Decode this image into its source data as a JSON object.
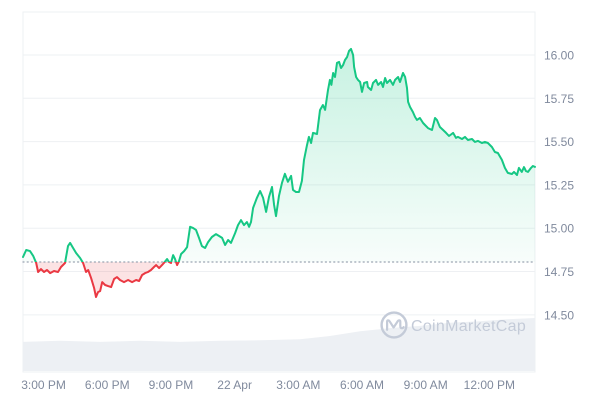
{
  "watermark": {
    "text": "CoinMarketCap"
  },
  "chart_data": {
    "type": "area",
    "title": "",
    "legend": "none",
    "grid": "horizontal",
    "baseline": {
      "value": 14.805,
      "style": "dotted"
    },
    "y_axis": {
      "side": "right",
      "range": [
        14.17,
        16.248
      ],
      "ticks": [
        {
          "value": 16.0,
          "label": "16.00"
        },
        {
          "value": 15.75,
          "label": "15.75"
        },
        {
          "value": 15.5,
          "label": "15.50"
        },
        {
          "value": 15.25,
          "label": "15.25"
        },
        {
          "value": 15.0,
          "label": "15.00"
        },
        {
          "value": 14.75,
          "label": "14.75"
        },
        {
          "value": 14.5,
          "label": "14.50"
        }
      ]
    },
    "x_axis": {
      "range_hours": [
        -0.97,
        23.15
      ],
      "ticks": [
        {
          "hour": 0,
          "label": "3:00 PM"
        },
        {
          "hour": 3,
          "label": "6:00 PM"
        },
        {
          "hour": 6,
          "label": "9:00 PM"
        },
        {
          "hour": 9,
          "label": "22 Apr"
        },
        {
          "hour": 12,
          "label": "3:00 AM"
        },
        {
          "hour": 15,
          "label": "6:00 AM"
        },
        {
          "hour": 18,
          "label": "9:00 AM"
        },
        {
          "hour": 21,
          "label": "12:00 PM"
        }
      ]
    },
    "colors": {
      "up": "#16C784",
      "down": "#EA3943",
      "up_fill_top": "rgba(22,199,132,0.24)",
      "up_fill_bottom": "rgba(22,199,132,0.03)",
      "down_fill": "rgba(234,57,67,0.14)",
      "grid": "#EEF0F3",
      "axis_label": "#808A9D",
      "baseline_dots": "#9AA4B2",
      "volume_fill": "#EDF0F4",
      "watermark": "#C4CBD8",
      "background": "#FFFFFF"
    },
    "series": [
      {
        "name": "price",
        "points": [
          [
            -0.97,
            14.834
          ],
          [
            -0.82,
            14.874
          ],
          [
            -0.64,
            14.868
          ],
          [
            -0.49,
            14.84
          ],
          [
            -0.35,
            14.799
          ],
          [
            -0.26,
            14.747
          ],
          [
            -0.12,
            14.764
          ],
          [
            0.02,
            14.747
          ],
          [
            0.16,
            14.759
          ],
          [
            0.31,
            14.741
          ],
          [
            0.49,
            14.753
          ],
          [
            0.68,
            14.747
          ],
          [
            0.82,
            14.776
          ],
          [
            1.01,
            14.799
          ],
          [
            1.15,
            14.897
          ],
          [
            1.25,
            14.915
          ],
          [
            1.39,
            14.886
          ],
          [
            1.53,
            14.857
          ],
          [
            1.72,
            14.828
          ],
          [
            1.86,
            14.799
          ],
          [
            2.0,
            14.747
          ],
          [
            2.1,
            14.759
          ],
          [
            2.24,
            14.712
          ],
          [
            2.38,
            14.655
          ],
          [
            2.47,
            14.603
          ],
          [
            2.57,
            14.632
          ],
          [
            2.66,
            14.637
          ],
          [
            2.76,
            14.689
          ],
          [
            2.9,
            14.672
          ],
          [
            3.04,
            14.666
          ],
          [
            3.18,
            14.66
          ],
          [
            3.32,
            14.707
          ],
          [
            3.46,
            14.718
          ],
          [
            3.6,
            14.701
          ],
          [
            3.79,
            14.689
          ],
          [
            3.98,
            14.701
          ],
          [
            4.17,
            14.689
          ],
          [
            4.36,
            14.701
          ],
          [
            4.5,
            14.695
          ],
          [
            4.64,
            14.73
          ],
          [
            4.78,
            14.741
          ],
          [
            4.92,
            14.747
          ],
          [
            5.06,
            14.759
          ],
          [
            5.2,
            14.776
          ],
          [
            5.3,
            14.787
          ],
          [
            5.44,
            14.77
          ],
          [
            5.58,
            14.787
          ],
          [
            5.67,
            14.799
          ],
          [
            5.82,
            14.822
          ],
          [
            5.91,
            14.805
          ],
          [
            6.0,
            14.799
          ],
          [
            6.1,
            14.845
          ],
          [
            6.19,
            14.822
          ],
          [
            6.29,
            14.787
          ],
          [
            6.38,
            14.81
          ],
          [
            6.48,
            14.851
          ],
          [
            6.62,
            14.868
          ],
          [
            6.76,
            14.891
          ],
          [
            6.9,
            15.008
          ],
          [
            7.04,
            15.002
          ],
          [
            7.18,
            14.99
          ],
          [
            7.32,
            14.944
          ],
          [
            7.46,
            14.897
          ],
          [
            7.61,
            14.886
          ],
          [
            7.75,
            14.92
          ],
          [
            7.93,
            14.949
          ],
          [
            8.12,
            14.966
          ],
          [
            8.27,
            14.955
          ],
          [
            8.41,
            14.944
          ],
          [
            8.55,
            14.903
          ],
          [
            8.69,
            14.932
          ],
          [
            8.83,
            14.915
          ],
          [
            9.02,
            14.972
          ],
          [
            9.16,
            15.018
          ],
          [
            9.3,
            15.047
          ],
          [
            9.44,
            15.018
          ],
          [
            9.58,
            15.036
          ],
          [
            9.68,
            15.008
          ],
          [
            9.77,
            15.036
          ],
          [
            9.87,
            15.117
          ],
          [
            10.05,
            15.175
          ],
          [
            10.2,
            15.215
          ],
          [
            10.34,
            15.175
          ],
          [
            10.48,
            15.094
          ],
          [
            10.62,
            15.181
          ],
          [
            10.76,
            15.238
          ],
          [
            10.86,
            15.134
          ],
          [
            10.95,
            15.07
          ],
          [
            11.09,
            15.187
          ],
          [
            11.23,
            15.262
          ],
          [
            11.37,
            15.314
          ],
          [
            11.51,
            15.268
          ],
          [
            11.66,
            15.302
          ],
          [
            11.75,
            15.221
          ],
          [
            11.89,
            15.209
          ],
          [
            12.03,
            15.209
          ],
          [
            12.17,
            15.273
          ],
          [
            12.27,
            15.394
          ],
          [
            12.41,
            15.48
          ],
          [
            12.5,
            15.527
          ],
          [
            12.6,
            15.492
          ],
          [
            12.69,
            15.55
          ],
          [
            12.88,
            15.544
          ],
          [
            13.02,
            15.682
          ],
          [
            13.16,
            15.711
          ],
          [
            13.26,
            15.683
          ],
          [
            13.4,
            15.798
          ],
          [
            13.49,
            15.856
          ],
          [
            13.56,
            15.827
          ],
          [
            13.64,
            15.896
          ],
          [
            13.73,
            15.873
          ],
          [
            13.82,
            15.954
          ],
          [
            13.92,
            15.96
          ],
          [
            14.01,
            15.925
          ],
          [
            14.11,
            15.942
          ],
          [
            14.2,
            15.971
          ],
          [
            14.3,
            15.988
          ],
          [
            14.39,
            16.023
          ],
          [
            14.48,
            16.035
          ],
          [
            14.58,
            16.0
          ],
          [
            14.63,
            15.931
          ],
          [
            14.72,
            15.873
          ],
          [
            14.81,
            15.856
          ],
          [
            14.91,
            15.844
          ],
          [
            15.0,
            15.787
          ],
          [
            15.1,
            15.838
          ],
          [
            15.24,
            15.844
          ],
          [
            15.28,
            15.815
          ],
          [
            15.43,
            15.798
          ],
          [
            15.52,
            15.838
          ],
          [
            15.66,
            15.856
          ],
          [
            15.76,
            15.827
          ],
          [
            15.9,
            15.844
          ],
          [
            15.99,
            15.815
          ],
          [
            16.09,
            15.867
          ],
          [
            16.18,
            15.838
          ],
          [
            16.32,
            15.856
          ],
          [
            16.46,
            15.827
          ],
          [
            16.56,
            15.856
          ],
          [
            16.7,
            15.873
          ],
          [
            16.79,
            15.844
          ],
          [
            16.93,
            15.896
          ],
          [
            17.03,
            15.873
          ],
          [
            17.12,
            15.809
          ],
          [
            17.17,
            15.729
          ],
          [
            17.26,
            15.7
          ],
          [
            17.4,
            15.671
          ],
          [
            17.5,
            15.642
          ],
          [
            17.59,
            15.625
          ],
          [
            17.73,
            15.636
          ],
          [
            17.88,
            15.607
          ],
          [
            17.97,
            15.596
          ],
          [
            18.11,
            15.578
          ],
          [
            18.3,
            15.567
          ],
          [
            18.44,
            15.636
          ],
          [
            18.53,
            15.625
          ],
          [
            18.67,
            15.584
          ],
          [
            18.82,
            15.567
          ],
          [
            18.96,
            15.55
          ],
          [
            19.1,
            15.532
          ],
          [
            19.29,
            15.55
          ],
          [
            19.43,
            15.521
          ],
          [
            19.52,
            15.527
          ],
          [
            19.71,
            15.515
          ],
          [
            19.85,
            15.527
          ],
          [
            19.99,
            15.509
          ],
          [
            20.18,
            15.515
          ],
          [
            20.32,
            15.498
          ],
          [
            20.46,
            15.504
          ],
          [
            20.65,
            15.492
          ],
          [
            20.79,
            15.498
          ],
          [
            20.93,
            15.492
          ],
          [
            21.12,
            15.469
          ],
          [
            21.26,
            15.44
          ],
          [
            21.4,
            15.434
          ],
          [
            21.59,
            15.394
          ],
          [
            21.73,
            15.348
          ],
          [
            21.87,
            15.319
          ],
          [
            22.06,
            15.313
          ],
          [
            22.16,
            15.325
          ],
          [
            22.3,
            15.307
          ],
          [
            22.39,
            15.348
          ],
          [
            22.53,
            15.325
          ],
          [
            22.63,
            15.353
          ],
          [
            22.72,
            15.33
          ],
          [
            22.82,
            15.325
          ],
          [
            22.96,
            15.348
          ],
          [
            23.05,
            15.359
          ],
          [
            23.15,
            15.354
          ]
        ]
      },
      {
        "name": "volume",
        "unit": "relative_0_100",
        "points": [
          [
            -0.97,
            55
          ],
          [
            0.78,
            57
          ],
          [
            2.66,
            55
          ],
          [
            4.55,
            57
          ],
          [
            6.43,
            55
          ],
          [
            8.31,
            57
          ],
          [
            10.2,
            58
          ],
          [
            12.08,
            60
          ],
          [
            13.49,
            66
          ],
          [
            14.91,
            75
          ],
          [
            16.32,
            81
          ],
          [
            17.73,
            85
          ],
          [
            19.15,
            91
          ],
          [
            20.56,
            94
          ],
          [
            21.97,
            98
          ],
          [
            23.15,
            100
          ]
        ]
      }
    ]
  }
}
